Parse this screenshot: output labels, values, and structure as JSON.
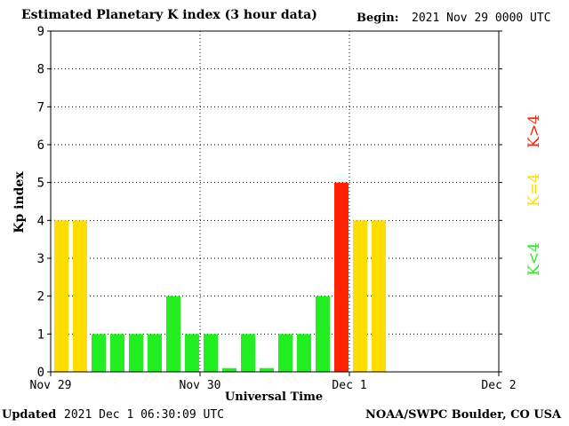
{
  "header": {
    "title": "Estimated Planetary K index (3 hour data)",
    "begin_label": "Begin:",
    "begin_value": "2021 Nov 29 0000 UTC"
  },
  "footer": {
    "updated_label": "Updated",
    "updated_value": "2021 Dec  1 06:30:09 UTC",
    "source": "NOAA/SWPC Boulder, CO USA"
  },
  "legend": {
    "low": "K<4",
    "mid": "K=4",
    "high": "K>4"
  },
  "colors": {
    "low": "#22ee22",
    "mid": "#ffdd00",
    "high": "#ff2200",
    "grid": "#000000"
  },
  "chart_data": {
    "type": "bar",
    "ylabel": "Kp index",
    "xlabel": "Universal Time",
    "ylim": [
      0,
      9
    ],
    "yticks": [
      "0",
      "1",
      "2",
      "3",
      "4",
      "5",
      "6",
      "7",
      "8",
      "9"
    ],
    "xticks": [
      "Nov 29",
      "Nov 30",
      "Dec 1",
      "Dec 2"
    ],
    "interval_hours": 3,
    "grid": "dotted",
    "values": [
      4,
      4,
      1,
      1,
      1,
      1,
      2,
      1,
      1,
      0.1,
      1,
      0.1,
      1,
      1,
      2,
      5,
      4,
      4
    ]
  }
}
